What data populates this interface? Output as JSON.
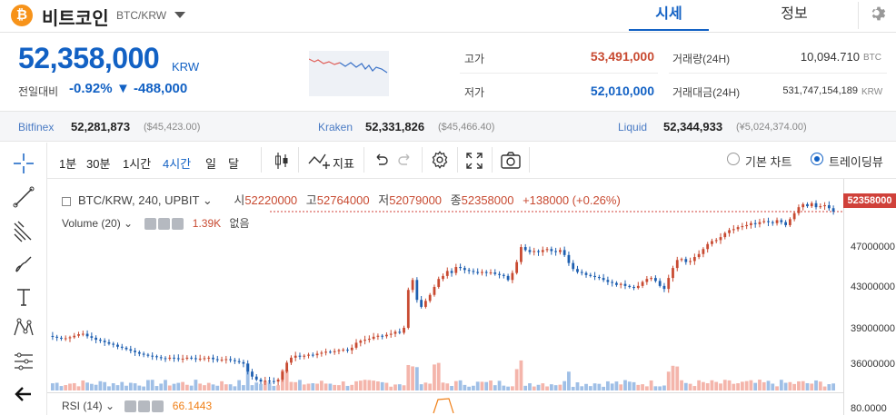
{
  "header": {
    "coin_icon": "bitcoin-icon",
    "coin_name": "비트코인",
    "pair": "BTC/KRW",
    "tabs": [
      {
        "label": "시세",
        "active": true
      },
      {
        "label": "정보",
        "active": false
      }
    ]
  },
  "price": {
    "current": "52,358,000",
    "unit": "KRW",
    "change_label": "전일대비",
    "change_rate": "-0.92%",
    "change_amount": "▼ -488,000",
    "color_down": "#1261c4",
    "color_up": "#c84a31"
  },
  "stats": {
    "high_label": "고가",
    "high_value": "53,491,000",
    "low_label": "저가",
    "low_value": "52,010,000",
    "volume_label": "거래량(24H)",
    "volume_value": "10,094.710",
    "volume_unit": "BTC",
    "amount_label": "거래대금(24H)",
    "amount_value": "531,747,154,189",
    "amount_unit": "KRW"
  },
  "exchanges": [
    {
      "name": "Bitfinex",
      "price": "52,281,873",
      "sub": "($45,423.00)"
    },
    {
      "name": "Kraken",
      "price": "52,331,826",
      "sub": "($45,466.40)"
    },
    {
      "name": "Liquid",
      "price": "52,344,933",
      "sub": "(¥5,024,374.00)"
    }
  ],
  "toolbar": {
    "intervals": [
      {
        "label": "1분",
        "active": false
      },
      {
        "label": "30분",
        "active": false
      },
      {
        "label": "1시간",
        "active": false
      },
      {
        "label": "4시간",
        "active": true
      },
      {
        "label": "일",
        "active": false
      },
      {
        "label": "달",
        "active": false
      }
    ],
    "indicator_label": "지표",
    "basic_chart_label": "기본 차트",
    "trading_view_label": "트레이딩뷰"
  },
  "chart": {
    "symbol_legend": "BTC/KRW, 240, UPBIT",
    "open_label": "시",
    "open": "52220000",
    "high_label": "고",
    "high": "52764000",
    "low_label": "저",
    "low": "52079000",
    "close_label": "종",
    "close": "52358000",
    "change": "+138000 (+0.26%)",
    "last_price_tag": "52358000",
    "volume_legend": "Volume (20)",
    "volume_value": "1.39K",
    "volume_extra": "없음",
    "rsi_legend": "RSI (14)",
    "rsi_value": "66.1443",
    "y_ticks": [
      "47000000",
      "43000000",
      "39000000",
      "36000000",
      "80.0000"
    ]
  },
  "chart_data": {
    "type": "candlestick",
    "title": "BTC/KRW, 240, UPBIT",
    "ylim": [
      34500000,
      54000000
    ],
    "colors": {
      "up": "#c84a31",
      "down": "#1e5fb0"
    },
    "series": [
      {
        "close": [
          39800000,
          39700000,
          39600000,
          39650000,
          39750000,
          39900000,
          40050000,
          40100000,
          39850000,
          39700000,
          39500000,
          39400000,
          39250000,
          39100000,
          39000000,
          38800000,
          38700000,
          38550000,
          38400000,
          38250000,
          38100000,
          38000000,
          37900000,
          37850000,
          37750000,
          37650000,
          37600000,
          37700000,
          37650000,
          37550000,
          37600000,
          37700000,
          37650000,
          37550000,
          37600000,
          37650000,
          37700000,
          37550000,
          37450000,
          37500000,
          37550000,
          37450000,
          37350000,
          37250000,
          37100000,
          36300000,
          35800000,
          35500000,
          35300000,
          35400000,
          35350000,
          35300000,
          35500000,
          36300000,
          37200000,
          37700000,
          37900000,
          37800000,
          37900000,
          38000000,
          37950000,
          38100000,
          38200000,
          38300000,
          38250000,
          38350000,
          38450000,
          38500000,
          38450000,
          38700000,
          39200000,
          39400000,
          39500000,
          39600000,
          39800000,
          39900000,
          39850000,
          40000000,
          40100000,
          40300000,
          40200000,
          40700000,
          44500000,
          45500000,
          43500000,
          42800000,
          43400000,
          44000000,
          44800000,
          45600000,
          45900000,
          46400000,
          46200000,
          46800000,
          46700000,
          46500000,
          46400000,
          46300000,
          46200000,
          46300000,
          46200000,
          46250000,
          46100000,
          46000000,
          45900000,
          45500000,
          46200000,
          47300000,
          48800000,
          48500000,
          48300000,
          48400000,
          48300000,
          48500000,
          48600000,
          48400000,
          48300000,
          48500000,
          48000000,
          47200000,
          46600000,
          46300000,
          46200000,
          46000000,
          45900000,
          45800000,
          45700000,
          45500000,
          45300000,
          45200000,
          45000000,
          45100000,
          44900000,
          44800000,
          44700000,
          44900000,
          45300000,
          45600000,
          45700000,
          45400000,
          44900000,
          44600000,
          45700000,
          46700000,
          47500000,
          47600000,
          47300000,
          47400000,
          47800000,
          48100000,
          48600000,
          49100000,
          49400000,
          49500000,
          49800000,
          50200000,
          50500000,
          50600000,
          50800000,
          50900000,
          51000000,
          51200000,
          51100000,
          51300000,
          51400000,
          51300000,
          51200000,
          51500000,
          51300000,
          51000000,
          51600000,
          52200000,
          52800000,
          53100000,
          52900000,
          53200000,
          52800000,
          52900000,
          53000000,
          52700000,
          52358000
        ]
      }
    ],
    "volume_max_note": "relative bars",
    "rsi_latest": 66.1443
  }
}
